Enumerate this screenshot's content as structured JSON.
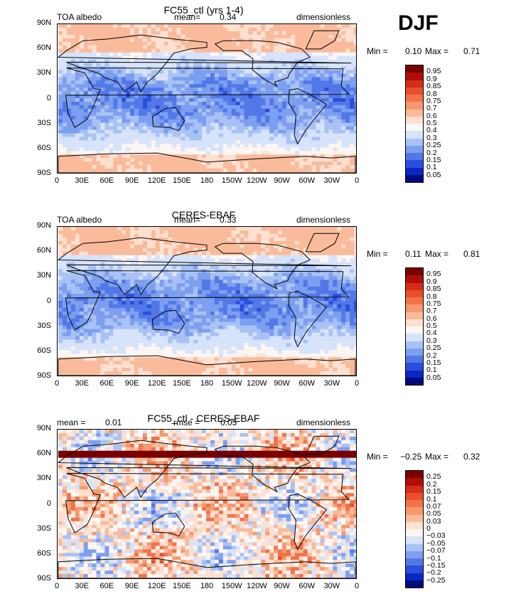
{
  "season": "DJF",
  "colors": {
    "pos": [
      "#fde9df",
      "#fbd1bc",
      "#f8b092",
      "#f48b6a",
      "#ec6440",
      "#dc3d1e",
      "#c21d0c",
      "#a30a04",
      "#850000"
    ],
    "neg": [
      "#e7eefd",
      "#c8d6fb",
      "#a8bdf7",
      "#86a2f2",
      "#5d80ec",
      "#3559e2",
      "#1a33d1",
      "#0a18ad",
      "#000a80"
    ]
  },
  "panels": [
    {
      "title": "FC55_ctl (yrs 1-4)",
      "left_label": "TOA albedo",
      "center_label": "mean=",
      "center_value": "0.34",
      "right_label": "dimensionless",
      "min_label": "Min =",
      "min_value": "0.10",
      "max_label": "Max =",
      "max_value": "0.71",
      "levels": [
        "0.95",
        "0.9",
        "0.85",
        "0.8",
        "0.75",
        "0.7",
        "0.6",
        "0.5",
        "0.4",
        "0.3",
        "0.25",
        "0.2",
        "0.15",
        "0.1",
        "0.05"
      ],
      "colorbar": [
        "#7a0000",
        "#b00e0a",
        "#d52d17",
        "#ea4f2b",
        "#f27349",
        "#f7986e",
        "#f9bb9b",
        "#fde0d0",
        "#fcf6f3",
        "#d6e3fb",
        "#a9c2f5",
        "#7d9ff0",
        "#5278e8",
        "#2a4fdc",
        "#0b27c2",
        "#000a7e"
      ]
    },
    {
      "title": "CERES-EBAF",
      "left_label": "TOA albedo",
      "center_label": "mean=",
      "center_value": "0.33",
      "right_label": "dimensionless",
      "min_label": "Min =",
      "min_value": "0.11",
      "max_label": "Max =",
      "max_value": "0.81",
      "levels": [
        "0.95",
        "0.9",
        "0.85",
        "0.8",
        "0.75",
        "0.7",
        "0.6",
        "0.5",
        "0.4",
        "0.3",
        "0.25",
        "0.2",
        "0.15",
        "0.1",
        "0.05"
      ],
      "colorbar": [
        "#7a0000",
        "#b00e0a",
        "#d52d17",
        "#ea4f2b",
        "#f27349",
        "#f7986e",
        "#f9bb9b",
        "#fde0d0",
        "#fcf6f3",
        "#d6e3fb",
        "#a9c2f5",
        "#7d9ff0",
        "#5278e8",
        "#2a4fdc",
        "#0b27c2",
        "#000a7e"
      ]
    },
    {
      "title": "FC55_ctl - CERES-EBAF",
      "left_label": "mean =",
      "left_value": "0.01",
      "center_label": "rmse =",
      "center_value": "0.05",
      "right_label": "dimensionless",
      "min_label": "Min =",
      "min_value": "−0.25",
      "max_label": "Max =",
      "max_value": "0.32",
      "levels": [
        "0.25",
        "0.2",
        "0.15",
        "0.1",
        "0.07",
        "0.05",
        "0.03",
        "0",
        "−0.03",
        "−0.05",
        "−0.07",
        "−0.1",
        "−0.15",
        "−0.2",
        "−0.25"
      ],
      "colorbar": [
        "#7a0000",
        "#b00e0a",
        "#d52d17",
        "#ea4f2b",
        "#f27349",
        "#f7986e",
        "#f9bb9b",
        "#fde0d0",
        "#fcf6f3",
        "#d6e3fb",
        "#a9c2f5",
        "#7d9ff0",
        "#5278e8",
        "#2a4fdc",
        "#0b27c2",
        "#000a7e"
      ]
    }
  ],
  "lat_ticks": [
    "90N",
    "60N",
    "30N",
    "0",
    "30S",
    "60S",
    "90S"
  ],
  "lon_ticks": [
    "0",
    "30E",
    "60E",
    "90E",
    "120E",
    "150E",
    "180",
    "150W",
    "120W",
    "90W",
    "60W",
    "30W",
    "0"
  ]
}
